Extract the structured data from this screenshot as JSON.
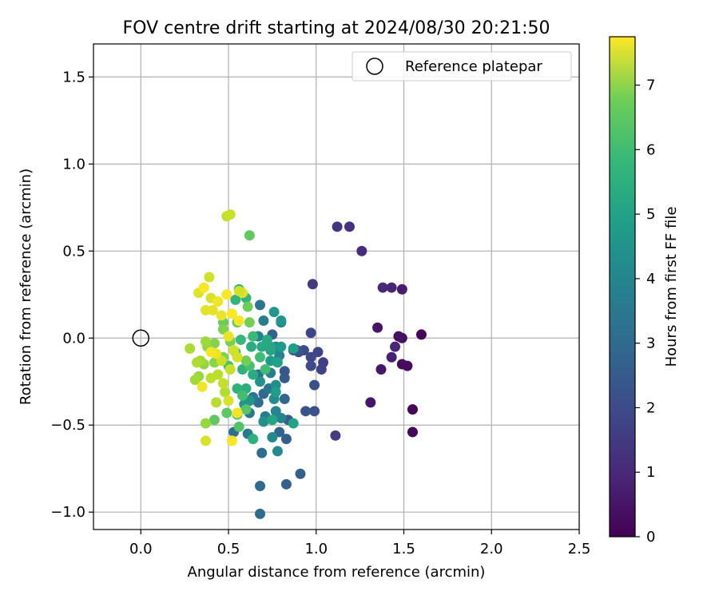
{
  "chart_data": {
    "type": "scatter",
    "title": "FOV centre drift starting at 2024/08/30 20:21:50",
    "xlabel": "Angular distance from reference (arcmin)",
    "ylabel": "Rotation from reference (arcmin)",
    "xlim": [
      -0.27,
      2.5
    ],
    "ylim": [
      -1.1,
      1.69
    ],
    "xticks": [
      0.0,
      0.5,
      1.0,
      1.5,
      2.0,
      2.5
    ],
    "xtick_labels": [
      "0.0",
      "0.5",
      "1.0",
      "1.5",
      "2.0",
      "2.5"
    ],
    "yticks": [
      -1.0,
      -0.5,
      0.0,
      0.5,
      1.0,
      1.5
    ],
    "ytick_labels": [
      "−1.0",
      "−0.5",
      "0.0",
      "0.5",
      "1.0",
      "1.5"
    ],
    "grid": true,
    "legend": {
      "position": "top-right",
      "entries": [
        {
          "label": "Reference platepar",
          "marker": "open-circle",
          "color": "#000000"
        }
      ]
    },
    "reference_point": {
      "x": 0.0,
      "y": 0.0
    },
    "colorbar": {
      "label": "Hours from first FF file",
      "cmap": "viridis",
      "range": [
        0,
        7.75
      ],
      "ticks": [
        0,
        1,
        2,
        3,
        4,
        5,
        6,
        7
      ],
      "tick_labels": [
        "0",
        "1",
        "2",
        "3",
        "4",
        "5",
        "6",
        "7"
      ]
    },
    "points": [
      {
        "x": 1.6,
        "y": 0.02,
        "c": 0.05
      },
      {
        "x": 1.55,
        "y": -0.41,
        "c": 0.1
      },
      {
        "x": 1.55,
        "y": -0.54,
        "c": 0.15
      },
      {
        "x": 1.52,
        "y": -0.16,
        "c": 0.2
      },
      {
        "x": 1.49,
        "y": -0.15,
        "c": 0.25
      },
      {
        "x": 1.49,
        "y": -0.0,
        "c": 0.3
      },
      {
        "x": 1.47,
        "y": 0.01,
        "c": 0.35
      },
      {
        "x": 1.35,
        "y": 0.06,
        "c": 0.4
      },
      {
        "x": 1.31,
        "y": -0.37,
        "c": 0.45
      },
      {
        "x": 1.37,
        "y": -0.18,
        "c": 0.5
      },
      {
        "x": 1.49,
        "y": 0.28,
        "c": 0.6
      },
      {
        "x": 1.43,
        "y": -0.11,
        "c": 0.7
      },
      {
        "x": 1.43,
        "y": 0.29,
        "c": 0.8
      },
      {
        "x": 1.45,
        "y": -0.05,
        "c": 0.85
      },
      {
        "x": 1.38,
        "y": 0.29,
        "c": 0.9
      },
      {
        "x": 1.26,
        "y": 0.5,
        "c": 1.0
      },
      {
        "x": 1.19,
        "y": 0.64,
        "c": 1.1
      },
      {
        "x": 1.12,
        "y": 0.64,
        "c": 1.2
      },
      {
        "x": 0.98,
        "y": 0.31,
        "c": 1.3
      },
      {
        "x": 1.11,
        "y": -0.56,
        "c": 1.4
      },
      {
        "x": 1.04,
        "y": -0.14,
        "c": 1.5
      },
      {
        "x": 1.03,
        "y": -0.18,
        "c": 1.55
      },
      {
        "x": 1.01,
        "y": -0.08,
        "c": 1.6
      },
      {
        "x": 0.97,
        "y": 0.03,
        "c": 1.65
      },
      {
        "x": 0.97,
        "y": -0.11,
        "c": 1.7
      },
      {
        "x": 0.97,
        "y": -0.16,
        "c": 1.75
      },
      {
        "x": 0.93,
        "y": -0.07,
        "c": 1.8
      },
      {
        "x": 0.9,
        "y": -0.08,
        "c": 1.85
      },
      {
        "x": 0.99,
        "y": -0.42,
        "c": 1.9
      },
      {
        "x": 0.99,
        "y": -0.27,
        "c": 1.95
      },
      {
        "x": 0.94,
        "y": -0.42,
        "c": 2.0
      },
      {
        "x": 0.89,
        "y": -0.07,
        "c": 2.05
      },
      {
        "x": 0.87,
        "y": -0.07,
        "c": 2.1
      },
      {
        "x": 0.82,
        "y": -0.19,
        "c": 2.15
      },
      {
        "x": 0.82,
        "y": -0.23,
        "c": 2.2
      },
      {
        "x": 0.84,
        "y": -0.47,
        "c": 2.25
      },
      {
        "x": 0.83,
        "y": -0.58,
        "c": 2.3
      },
      {
        "x": 0.91,
        "y": -0.78,
        "c": 2.35
      },
      {
        "x": 0.83,
        "y": -0.84,
        "c": 2.4
      },
      {
        "x": 0.75,
        "y": 0.02,
        "c": 2.45
      },
      {
        "x": 0.79,
        "y": -0.54,
        "c": 2.5
      },
      {
        "x": 0.82,
        "y": -0.35,
        "c": 2.55
      },
      {
        "x": 0.7,
        "y": -0.32,
        "c": 2.6
      },
      {
        "x": 0.68,
        "y": -0.85,
        "c": 2.65
      },
      {
        "x": 0.68,
        "y": -1.01,
        "c": 2.7
      },
      {
        "x": 0.69,
        "y": -0.66,
        "c": 2.75
      },
      {
        "x": 0.67,
        "y": -0.37,
        "c": 2.8
      },
      {
        "x": 0.53,
        "y": -0.54,
        "c": 2.85
      },
      {
        "x": 0.67,
        "y": -0.21,
        "c": 2.9
      },
      {
        "x": 0.64,
        "y": -0.34,
        "c": 2.95
      },
      {
        "x": 0.73,
        "y": -0.29,
        "c": 3.0
      },
      {
        "x": 0.68,
        "y": 0.19,
        "c": 3.05
      },
      {
        "x": 0.62,
        "y": -0.43,
        "c": 3.1
      },
      {
        "x": 0.61,
        "y": -0.55,
        "c": 3.15
      },
      {
        "x": 0.71,
        "y": -0.45,
        "c": 3.2
      },
      {
        "x": 0.74,
        "y": -0.2,
        "c": 3.25
      },
      {
        "x": 0.8,
        "y": 0.09,
        "c": 3.3
      },
      {
        "x": 0.7,
        "y": 0.1,
        "c": 3.35
      },
      {
        "x": 0.67,
        "y": 0.01,
        "c": 3.4
      },
      {
        "x": 0.79,
        "y": -0.1,
        "c": 3.45
      },
      {
        "x": 0.77,
        "y": -0.42,
        "c": 3.5
      },
      {
        "x": 0.8,
        "y": -0.46,
        "c": 3.55
      },
      {
        "x": 0.77,
        "y": -0.05,
        "c": 3.6
      },
      {
        "x": 0.75,
        "y": -0.57,
        "c": 3.65
      },
      {
        "x": 0.78,
        "y": -0.65,
        "c": 3.7
      },
      {
        "x": 0.76,
        "y": -0.35,
        "c": 3.75
      },
      {
        "x": 0.77,
        "y": -0.27,
        "c": 3.8
      },
      {
        "x": 0.72,
        "y": -0.03,
        "c": 3.85
      },
      {
        "x": 0.7,
        "y": -0.48,
        "c": 3.9
      },
      {
        "x": 0.68,
        "y": -0.25,
        "c": 3.95
      },
      {
        "x": 0.62,
        "y": -0.36,
        "c": 4.0
      },
      {
        "x": 0.59,
        "y": -0.38,
        "c": 4.05
      },
      {
        "x": 0.8,
        "y": 0.1,
        "c": 4.1
      },
      {
        "x": 0.76,
        "y": 0.15,
        "c": 4.15
      },
      {
        "x": 0.8,
        "y": -0.05,
        "c": 4.2
      },
      {
        "x": 0.74,
        "y": -0.13,
        "c": 4.25
      },
      {
        "x": 0.77,
        "y": -0.31,
        "c": 4.3
      },
      {
        "x": 0.87,
        "y": -0.06,
        "c": 4.35
      },
      {
        "x": 0.78,
        "y": -0.14,
        "c": 4.4
      },
      {
        "x": 0.74,
        "y": -0.07,
        "c": 4.45
      },
      {
        "x": 0.87,
        "y": -0.49,
        "c": 4.5
      },
      {
        "x": 0.75,
        "y": -0.47,
        "c": 4.55
      },
      {
        "x": 0.74,
        "y": -0.05,
        "c": 4.6
      },
      {
        "x": 0.72,
        "y": -0.01,
        "c": 4.65
      },
      {
        "x": 0.69,
        "y": -0.05,
        "c": 4.7
      },
      {
        "x": 0.64,
        "y": -0.21,
        "c": 4.75
      },
      {
        "x": 0.63,
        "y": -0.05,
        "c": 4.8
      },
      {
        "x": 0.6,
        "y": -0.29,
        "c": 4.85
      },
      {
        "x": 0.64,
        "y": -0.58,
        "c": 4.9
      },
      {
        "x": 0.58,
        "y": -0.18,
        "c": 4.95
      },
      {
        "x": 0.55,
        "y": -0.29,
        "c": 5.0
      },
      {
        "x": 0.54,
        "y": 0.22,
        "c": 5.05
      },
      {
        "x": 0.6,
        "y": 0.23,
        "c": 5.1
      },
      {
        "x": 0.56,
        "y": 0.28,
        "c": 5.15
      },
      {
        "x": 0.57,
        "y": -0.01,
        "c": 5.2
      },
      {
        "x": 0.64,
        "y": 0.01,
        "c": 5.25
      },
      {
        "x": 0.68,
        "y": -0.11,
        "c": 5.3
      },
      {
        "x": 0.71,
        "y": -0.18,
        "c": 5.35
      },
      {
        "x": 0.58,
        "y": -0.33,
        "c": 5.4
      },
      {
        "x": 0.62,
        "y": -0.16,
        "c": 5.45
      },
      {
        "x": 0.54,
        "y": -0.08,
        "c": 5.5
      },
      {
        "x": 0.5,
        "y": -0.16,
        "c": 5.55
      },
      {
        "x": 0.56,
        "y": -0.51,
        "c": 5.6
      },
      {
        "x": 0.6,
        "y": -0.41,
        "c": 5.65
      },
      {
        "x": 0.55,
        "y": -0.44,
        "c": 5.7
      },
      {
        "x": 0.49,
        "y": -0.43,
        "c": 5.75
      },
      {
        "x": 0.42,
        "y": -0.47,
        "c": 5.8
      },
      {
        "x": 0.62,
        "y": 0.59,
        "c": 5.85
      },
      {
        "x": 0.47,
        "y": 0.09,
        "c": 5.9
      },
      {
        "x": 0.55,
        "y": 0.09,
        "c": 5.95
      },
      {
        "x": 0.61,
        "y": 0.18,
        "c": 6.0
      },
      {
        "x": 0.6,
        "y": -0.13,
        "c": 6.05
      },
      {
        "x": 0.62,
        "y": 0.09,
        "c": 6.1
      },
      {
        "x": 0.51,
        "y": -0.02,
        "c": 6.15
      },
      {
        "x": 0.47,
        "y": -0.11,
        "c": 6.2
      },
      {
        "x": 0.47,
        "y": 0.05,
        "c": 6.25
      },
      {
        "x": 0.42,
        "y": -0.03,
        "c": 6.3
      },
      {
        "x": 0.42,
        "y": -0.14,
        "c": 6.35
      },
      {
        "x": 0.38,
        "y": -0.05,
        "c": 6.4
      },
      {
        "x": 0.36,
        "y": -0.15,
        "c": 6.45
      },
      {
        "x": 0.37,
        "y": -0.49,
        "c": 6.5
      },
      {
        "x": 0.33,
        "y": -0.22,
        "c": 6.55
      },
      {
        "x": 0.37,
        "y": -0.02,
        "c": 6.6
      },
      {
        "x": 0.31,
        "y": -0.24,
        "c": 6.65
      },
      {
        "x": 0.34,
        "y": -0.13,
        "c": 6.7
      },
      {
        "x": 0.28,
        "y": -0.06,
        "c": 6.75
      },
      {
        "x": 0.32,
        "y": -0.14,
        "c": 6.8
      },
      {
        "x": 0.48,
        "y": -0.31,
        "c": 6.85
      },
      {
        "x": 0.43,
        "y": -0.37,
        "c": 6.9
      },
      {
        "x": 0.44,
        "y": -0.21,
        "c": 6.95
      },
      {
        "x": 0.4,
        "y": -0.23,
        "c": 7.0
      },
      {
        "x": 0.47,
        "y": -0.26,
        "c": 7.05
      },
      {
        "x": 0.51,
        "y": -0.18,
        "c": 7.1
      },
      {
        "x": 0.46,
        "y": -0.13,
        "c": 7.15
      },
      {
        "x": 0.53,
        "y": -0.07,
        "c": 7.2
      },
      {
        "x": 0.55,
        "y": -0.11,
        "c": 7.25
      },
      {
        "x": 0.4,
        "y": 0.23,
        "c": 7.3
      },
      {
        "x": 0.33,
        "y": 0.26,
        "c": 7.35
      },
      {
        "x": 0.37,
        "y": 0.16,
        "c": 7.4
      },
      {
        "x": 0.41,
        "y": 0.16,
        "c": 7.45
      },
      {
        "x": 0.46,
        "y": 0.13,
        "c": 7.5
      },
      {
        "x": 0.43,
        "y": -0.09,
        "c": 7.55
      },
      {
        "x": 0.44,
        "y": 0.21,
        "c": 7.6
      },
      {
        "x": 0.49,
        "y": 0.7,
        "c": 7.05
      },
      {
        "x": 0.51,
        "y": 0.71,
        "c": 7.1
      },
      {
        "x": 0.39,
        "y": 0.35,
        "c": 7.2
      },
      {
        "x": 0.36,
        "y": 0.29,
        "c": 7.7
      },
      {
        "x": 0.49,
        "y": 0.25,
        "c": 7.7
      },
      {
        "x": 0.58,
        "y": 0.26,
        "c": 7.4
      },
      {
        "x": 0.52,
        "y": 0.14,
        "c": 7.75
      },
      {
        "x": 0.56,
        "y": 0.1,
        "c": 7.7
      },
      {
        "x": 0.5,
        "y": 0.01,
        "c": 7.5
      },
      {
        "x": 0.4,
        "y": -0.08,
        "c": 7.65
      },
      {
        "x": 0.35,
        "y": -0.28,
        "c": 7.6
      },
      {
        "x": 0.52,
        "y": -0.59,
        "c": 7.7
      },
      {
        "x": 0.55,
        "y": -0.43,
        "c": 7.6
      },
      {
        "x": 0.37,
        "y": -0.59,
        "c": 7.3
      },
      {
        "x": 0.5,
        "y": -0.36,
        "c": 7.3
      },
      {
        "x": 0.56,
        "y": 0.27,
        "c": 7.2
      }
    ]
  }
}
